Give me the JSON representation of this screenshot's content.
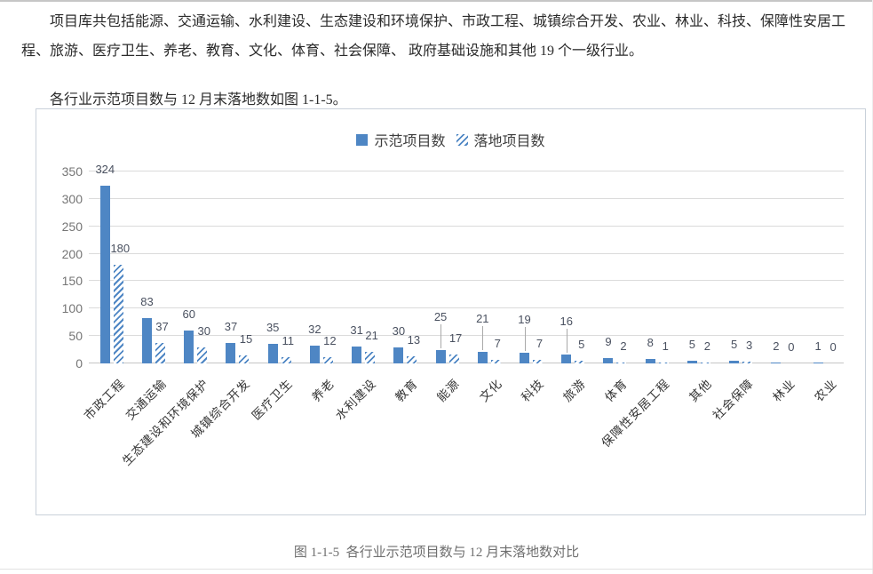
{
  "paragraphs": {
    "p1": "项目库共包括能源、交通运输、水利建设、生态建设和环境保护、市政工程、城镇综合开发、农业、林业、科技、保障性安居工程、旅游、医疗卫生、养老、教育、文化、体育、社会保障、 政府基础设施和其他 19 个一级行业。",
    "p2": "各行业示范项目数与 12 月末落地数如图 1-1-5。"
  },
  "figure": {
    "caption": "图 1-1-5  各行业示范项目数与 12 月末落地数对比"
  },
  "chart_data": {
    "type": "bar",
    "title": "",
    "categories": [
      "市政工程",
      "交通运输",
      "生态建设和环境保护",
      "城镇综合开发",
      "医疗卫生",
      "养老",
      "水利建设",
      "教育",
      "能源",
      "文化",
      "科技",
      "旅游",
      "体育",
      "保障性安居工程",
      "其他",
      "社会保障",
      "林业",
      "农业"
    ],
    "series": [
      {
        "name": "示范项目数",
        "pattern": "solid",
        "values": [
          324,
          83,
          60,
          37,
          35,
          32,
          31,
          30,
          25,
          21,
          19,
          16,
          9,
          8,
          5,
          5,
          2,
          1
        ]
      },
      {
        "name": "落地项目数",
        "pattern": "diagonal-hatch",
        "values": [
          180,
          37,
          30,
          15,
          11,
          12,
          21,
          13,
          17,
          7,
          7,
          5,
          2,
          1,
          2,
          3,
          0,
          0
        ]
      }
    ],
    "ylim": [
      0,
      350
    ],
    "yticks": [
      0,
      50,
      100,
      150,
      200,
      250,
      300,
      350
    ],
    "grid": true,
    "legend_position": "top-center",
    "x_axis_label_rotation": -45,
    "leader_label_categories": [
      "能源",
      "文化",
      "科技",
      "旅游"
    ],
    "colors": {
      "bar_blue": "#4e86c4",
      "gridline": "#dbdbdb",
      "axis_line": "#c5c5c5",
      "tick_label": "#757575",
      "data_label": "#4a5160",
      "frame_border": "#c9d1da"
    }
  }
}
